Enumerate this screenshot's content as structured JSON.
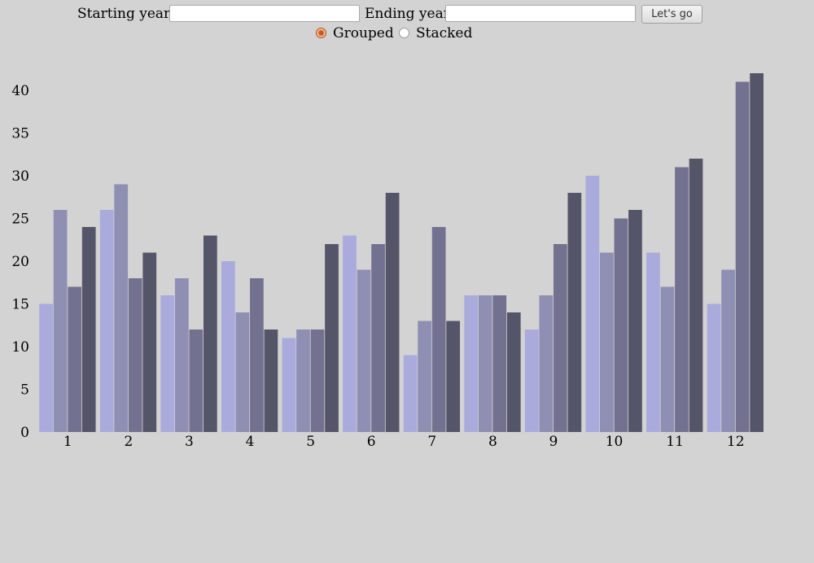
{
  "controls": {
    "start_label": "Starting year",
    "start_value": "",
    "end_label": "Ending year",
    "end_value": "",
    "go_label": "Let's go",
    "grouped_label": "Grouped",
    "stacked_label": "Stacked",
    "selected_mode": "Grouped"
  },
  "chart_data": {
    "type": "bar",
    "mode": "grouped",
    "title": "",
    "xlabel": "",
    "ylabel": "",
    "categories": [
      "1",
      "2",
      "3",
      "4",
      "5",
      "6",
      "7",
      "8",
      "9",
      "10",
      "11",
      "12"
    ],
    "series": [
      {
        "values": [
          15,
          26,
          16,
          20,
          11,
          23,
          9,
          16,
          12,
          30,
          21,
          15
        ],
        "color": "#aaaadd"
      },
      {
        "values": [
          26,
          29,
          18,
          14,
          12,
          19,
          13,
          16,
          16,
          21,
          17,
          19
        ],
        "color": "#8f8fb4"
      },
      {
        "values": [
          17,
          18,
          12,
          18,
          12,
          22,
          24,
          16,
          22,
          25,
          31,
          41
        ],
        "color": "#727290"
      },
      {
        "values": [
          24,
          21,
          23,
          12,
          22,
          28,
          13,
          14,
          28,
          26,
          32,
          42
        ],
        "color": "#55556a"
      }
    ],
    "ylim": [
      0,
      42
    ],
    "yticks": [
      0,
      5,
      10,
      15,
      20,
      25,
      30,
      35,
      40
    ],
    "grid": false,
    "legend": "none"
  }
}
